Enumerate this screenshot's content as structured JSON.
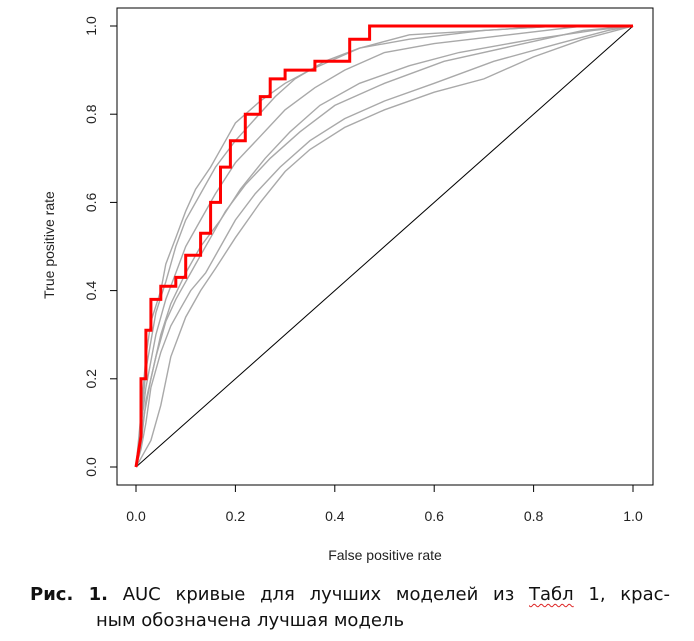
{
  "chart_data": {
    "type": "line",
    "xlabel": "False positive rate",
    "ylabel": "True positive rate",
    "xlim": [
      0,
      1
    ],
    "ylim": [
      0,
      1
    ],
    "xticks": [
      "0.0",
      "0.2",
      "0.4",
      "0.6",
      "0.8",
      "1.0"
    ],
    "yticks": [
      "0.0",
      "0.2",
      "0.4",
      "0.6",
      "0.8",
      "1.0"
    ],
    "grid": false,
    "legend": "none",
    "colors": {
      "best": "#ff0000",
      "others": "#a9a9a9",
      "diagonal": "#000000"
    },
    "diagonal": {
      "x": [
        0,
        1
      ],
      "y": [
        0,
        1
      ]
    },
    "best_model": {
      "x": [
        0,
        0.01,
        0.01,
        0.02,
        0.02,
        0.03,
        0.03,
        0.05,
        0.05,
        0.08,
        0.08,
        0.1,
        0.1,
        0.13,
        0.13,
        0.15,
        0.15,
        0.17,
        0.17,
        0.19,
        0.19,
        0.22,
        0.22,
        0.25,
        0.25,
        0.27,
        0.27,
        0.3,
        0.3,
        0.36,
        0.36,
        0.43,
        0.43,
        0.47,
        0.47,
        1.0
      ],
      "y": [
        0,
        0.07,
        0.2,
        0.2,
        0.31,
        0.31,
        0.38,
        0.38,
        0.41,
        0.41,
        0.43,
        0.43,
        0.48,
        0.48,
        0.53,
        0.53,
        0.6,
        0.6,
        0.68,
        0.68,
        0.74,
        0.74,
        0.8,
        0.8,
        0.84,
        0.84,
        0.88,
        0.88,
        0.9,
        0.9,
        0.92,
        0.92,
        0.97,
        0.97,
        1.0,
        1.0
      ]
    },
    "other_models": [
      {
        "x": [
          0,
          0.01,
          0.02,
          0.03,
          0.05,
          0.06,
          0.08,
          0.1,
          0.12,
          0.15,
          0.18,
          0.2,
          0.25,
          0.3,
          0.35,
          0.45,
          0.55,
          0.7,
          0.85,
          1.0
        ],
        "y": [
          0,
          0.12,
          0.25,
          0.33,
          0.4,
          0.46,
          0.52,
          0.58,
          0.63,
          0.68,
          0.74,
          0.78,
          0.83,
          0.87,
          0.9,
          0.95,
          0.98,
          0.99,
          1.0,
          1.0
        ]
      },
      {
        "x": [
          0,
          0.01,
          0.02,
          0.04,
          0.06,
          0.08,
          0.1,
          0.13,
          0.16,
          0.2,
          0.24,
          0.28,
          0.32,
          0.38,
          0.45,
          0.55,
          0.7,
          0.85,
          1.0
        ],
        "y": [
          0,
          0.1,
          0.22,
          0.35,
          0.42,
          0.5,
          0.56,
          0.62,
          0.68,
          0.74,
          0.79,
          0.84,
          0.88,
          0.92,
          0.95,
          0.97,
          0.99,
          1.0,
          1.0
        ]
      },
      {
        "x": [
          0,
          0.02,
          0.04,
          0.06,
          0.08,
          0.1,
          0.13,
          0.16,
          0.2,
          0.25,
          0.3,
          0.36,
          0.42,
          0.5,
          0.6,
          0.75,
          0.9,
          1.0
        ],
        "y": [
          0,
          0.18,
          0.3,
          0.38,
          0.44,
          0.5,
          0.56,
          0.62,
          0.69,
          0.75,
          0.81,
          0.86,
          0.9,
          0.94,
          0.96,
          0.98,
          1.0,
          1.0
        ]
      },
      {
        "x": [
          0,
          0.01,
          0.03,
          0.05,
          0.07,
          0.1,
          0.13,
          0.17,
          0.21,
          0.26,
          0.31,
          0.37,
          0.45,
          0.55,
          0.65,
          0.8,
          0.92,
          1.0
        ],
        "y": [
          0,
          0.08,
          0.2,
          0.3,
          0.37,
          0.44,
          0.5,
          0.56,
          0.63,
          0.7,
          0.76,
          0.82,
          0.87,
          0.91,
          0.94,
          0.97,
          0.99,
          1.0
        ]
      },
      {
        "x": [
          0,
          0.01,
          0.02,
          0.04,
          0.06,
          0.08,
          0.1,
          0.12,
          0.15,
          0.18,
          0.22,
          0.27,
          0.33,
          0.4,
          0.5,
          0.62,
          0.78,
          0.9,
          1.0
        ],
        "y": [
          0,
          0.05,
          0.15,
          0.25,
          0.33,
          0.38,
          0.42,
          0.46,
          0.52,
          0.58,
          0.64,
          0.7,
          0.76,
          0.82,
          0.87,
          0.92,
          0.96,
          0.99,
          1.0
        ]
      },
      {
        "x": [
          0,
          0.01,
          0.02,
          0.03,
          0.05,
          0.07,
          0.09,
          0.11,
          0.14,
          0.17,
          0.2,
          0.24,
          0.29,
          0.35,
          0.42,
          0.5,
          0.6,
          0.72,
          0.85,
          0.95,
          1.0
        ],
        "y": [
          0,
          0.04,
          0.1,
          0.18,
          0.26,
          0.32,
          0.36,
          0.4,
          0.44,
          0.5,
          0.56,
          0.62,
          0.68,
          0.74,
          0.79,
          0.83,
          0.87,
          0.92,
          0.96,
          0.99,
          1.0
        ]
      },
      {
        "x": [
          0,
          0.01,
          0.03,
          0.05,
          0.07,
          0.1,
          0.13,
          0.16,
          0.2,
          0.25,
          0.3,
          0.35,
          0.42,
          0.5,
          0.6,
          0.7,
          0.8,
          0.9,
          1.0
        ],
        "y": [
          0,
          0.02,
          0.06,
          0.14,
          0.25,
          0.34,
          0.4,
          0.45,
          0.52,
          0.6,
          0.67,
          0.72,
          0.77,
          0.81,
          0.85,
          0.88,
          0.93,
          0.97,
          1.0
        ]
      }
    ]
  },
  "caption": {
    "label": "Рис. 1.",
    "line1_text": "AUC кривые для лучших моделей из ",
    "line1_word": "Табл",
    "line1_tail": " 1, крас-",
    "line2_text": "ным обозначена лучшая модель"
  }
}
